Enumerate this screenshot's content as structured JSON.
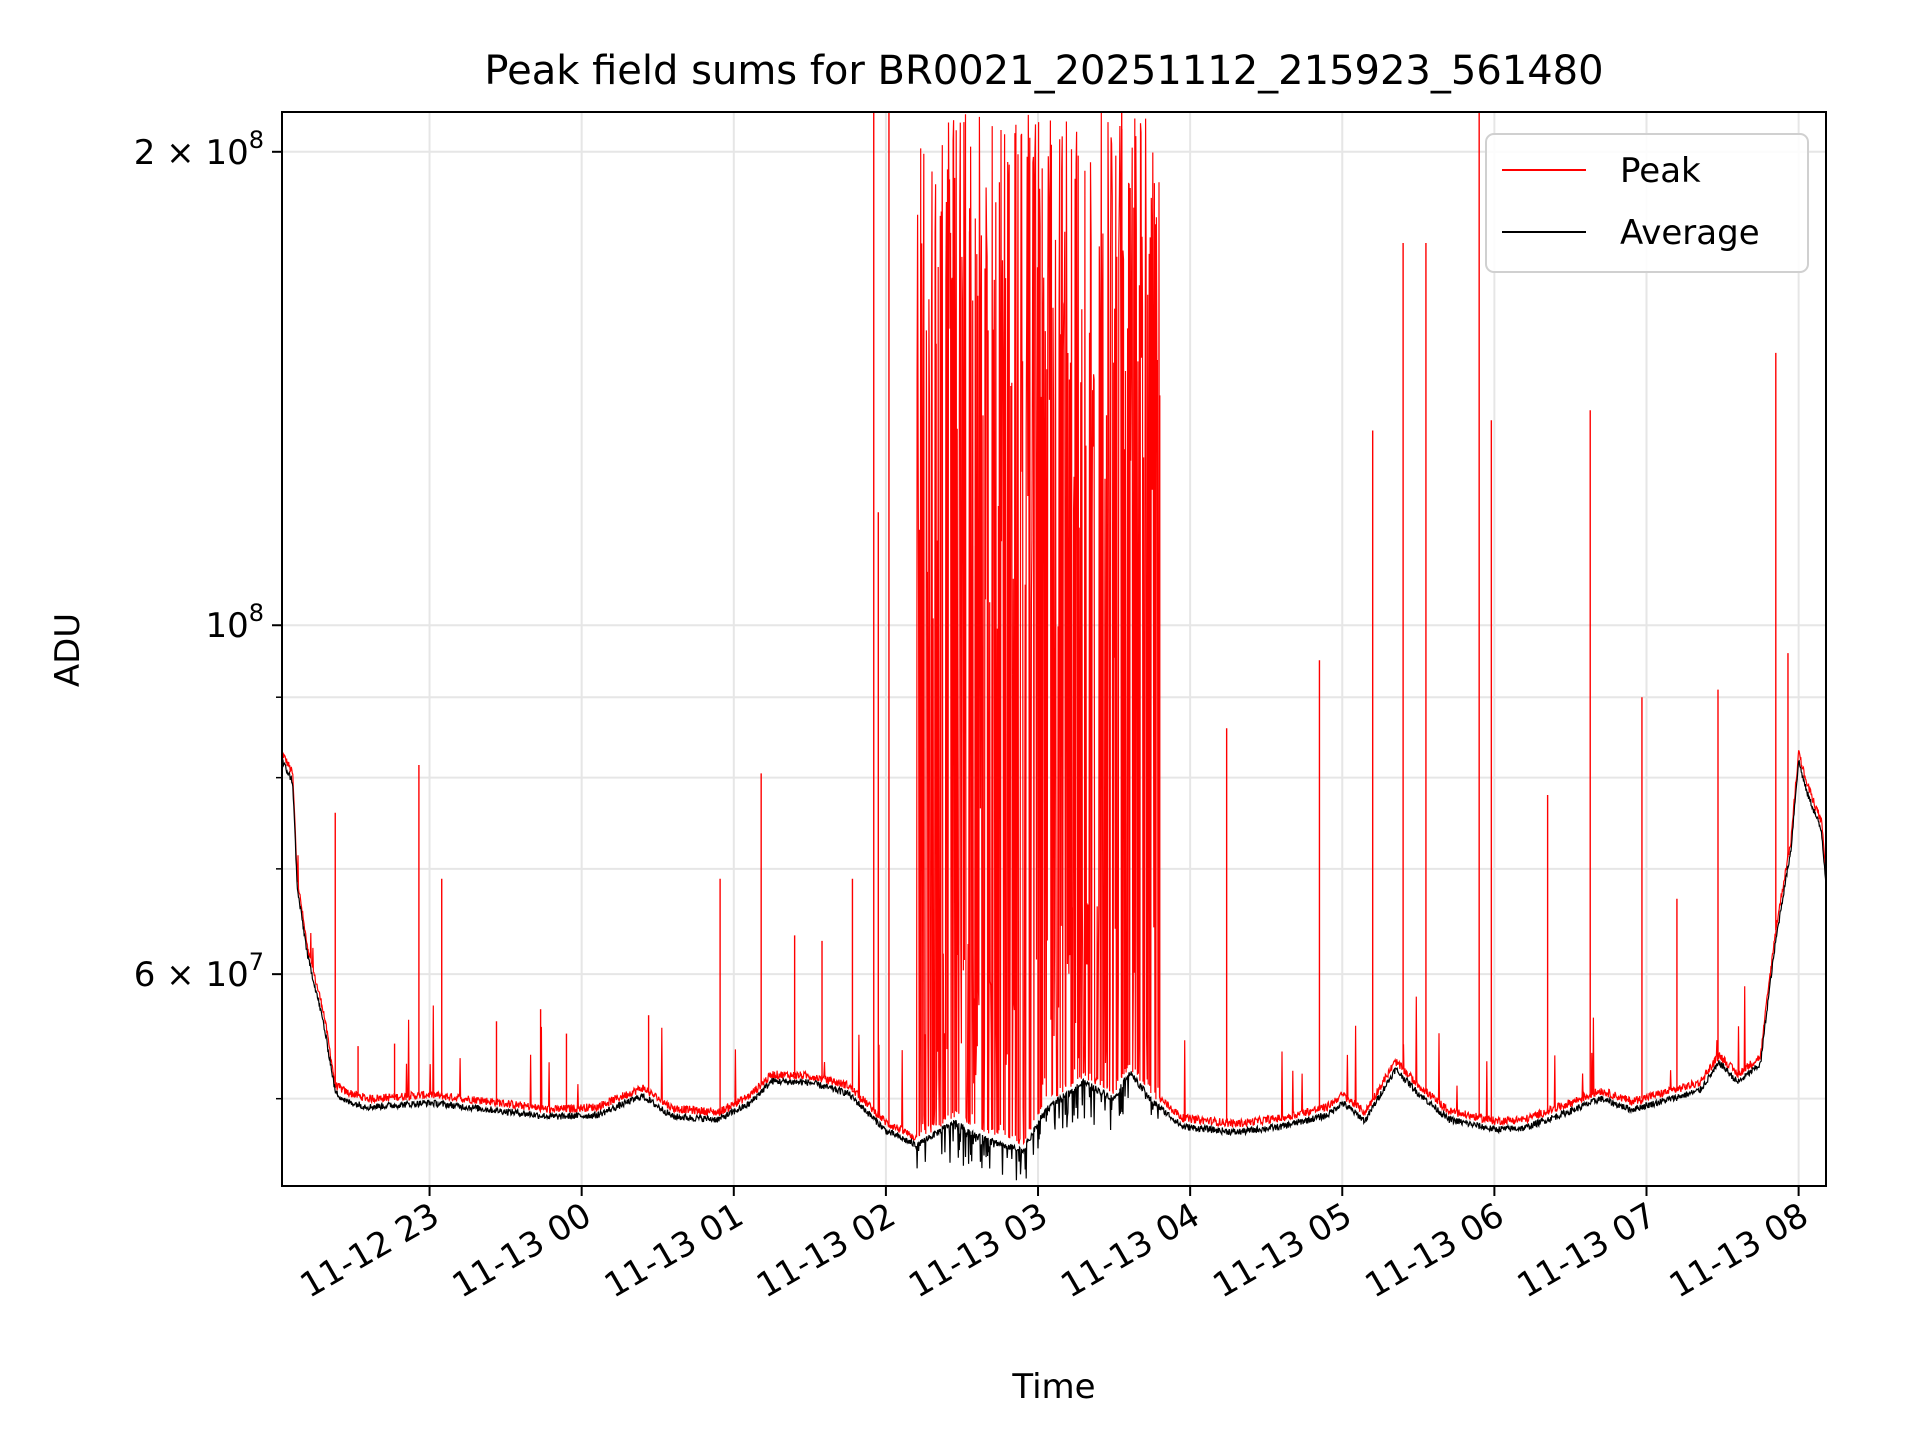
{
  "chart_data": {
    "type": "line",
    "title": "Peak field sums for BR0021_20251112_215923_561480",
    "xlabel": "Time",
    "ylabel": "ADU",
    "yscale": "log",
    "xlim_hours": [
      22.03,
      32.18
    ],
    "ylim": [
      44000000,
      212000000
    ],
    "grid": true,
    "legend_position": "upper right",
    "x_ticks": [
      {
        "hour": 23,
        "label": "11-12 23"
      },
      {
        "hour": 24,
        "label": "11-13 00"
      },
      {
        "hour": 25,
        "label": "11-13 01"
      },
      {
        "hour": 26,
        "label": "11-13 02"
      },
      {
        "hour": 27,
        "label": "11-13 03"
      },
      {
        "hour": 28,
        "label": "11-13 04"
      },
      {
        "hour": 29,
        "label": "11-13 05"
      },
      {
        "hour": 30,
        "label": "11-13 06"
      },
      {
        "hour": 31,
        "label": "11-13 07"
      },
      {
        "hour": 32,
        "label": "11-13 08"
      }
    ],
    "y_major_ticks": [
      {
        "value": 60000000,
        "mantissa": "6",
        "exponent": "7"
      },
      {
        "value": 100000000,
        "mantissa": "",
        "exponent": "8"
      },
      {
        "value": 200000000,
        "mantissa": "2",
        "exponent": "8"
      }
    ],
    "y_minor_ticks": [
      50000000,
      70000000,
      80000000,
      90000000
    ],
    "times_symbol": "×",
    "base": "10",
    "series": [
      {
        "name": "Peak",
        "color": "#ff0000",
        "baseline_points": [
          [
            22.03,
            83000000
          ],
          [
            22.1,
            80500000
          ],
          [
            22.13,
            69000000
          ],
          [
            22.2,
            62000000
          ],
          [
            22.3,
            57000000
          ],
          [
            22.38,
            51000000
          ],
          [
            22.45,
            50500000
          ],
          [
            22.6,
            50000000
          ],
          [
            23.0,
            50300000
          ],
          [
            23.4,
            49800000
          ],
          [
            23.8,
            49200000
          ],
          [
            24.1,
            49400000
          ],
          [
            24.4,
            50800000
          ],
          [
            24.6,
            49300000
          ],
          [
            24.9,
            49000000
          ],
          [
            25.1,
            50200000
          ],
          [
            25.25,
            51800000
          ],
          [
            25.5,
            51700000
          ],
          [
            25.75,
            51000000
          ],
          [
            26.0,
            48300000
          ],
          [
            26.2,
            47200000
          ],
          [
            26.45,
            48900000
          ],
          [
            26.6,
            48000000
          ],
          [
            26.9,
            47000000
          ],
          [
            27.05,
            49800000
          ],
          [
            27.3,
            51800000
          ],
          [
            27.5,
            50600000
          ],
          [
            27.6,
            52500000
          ],
          [
            27.75,
            50500000
          ],
          [
            27.95,
            48600000
          ],
          [
            28.3,
            48200000
          ],
          [
            28.6,
            48600000
          ],
          [
            28.9,
            49400000
          ],
          [
            29.0,
            50300000
          ],
          [
            29.15,
            49000000
          ],
          [
            29.35,
            52800000
          ],
          [
            29.5,
            51000000
          ],
          [
            29.7,
            49100000
          ],
          [
            30.0,
            48400000
          ],
          [
            30.2,
            48500000
          ],
          [
            30.5,
            49700000
          ],
          [
            30.7,
            50600000
          ],
          [
            30.9,
            49800000
          ],
          [
            31.2,
            50700000
          ],
          [
            31.35,
            51200000
          ],
          [
            31.48,
            53300000
          ],
          [
            31.6,
            51800000
          ],
          [
            31.75,
            53200000
          ],
          [
            31.85,
            64000000
          ],
          [
            31.95,
            73000000
          ],
          [
            32.0,
            83000000
          ],
          [
            32.05,
            79500000
          ],
          [
            32.15,
            75000000
          ],
          [
            32.18,
            69500000
          ]
        ],
        "spikes": [
          [
            22.38,
            76000000
          ],
          [
            22.53,
            54000000
          ],
          [
            22.77,
            54200000
          ],
          [
            22.93,
            81500000
          ],
          [
            23.08,
            69000000
          ],
          [
            23.44,
            56000000
          ],
          [
            23.73,
            57000000
          ],
          [
            23.9,
            55000000
          ],
          [
            24.44,
            56500000
          ],
          [
            24.91,
            69000000
          ],
          [
            25.18,
            80500000
          ],
          [
            25.4,
            63500000
          ],
          [
            25.58,
            63000000
          ],
          [
            25.78,
            69000000
          ],
          [
            25.92,
            212000000
          ],
          [
            25.95,
            118000000
          ],
          [
            26.02,
            212000000
          ],
          [
            26.22,
            115000000
          ],
          [
            26.33,
            151000000
          ],
          [
            26.55,
            178000000
          ],
          [
            27.0,
            140000000
          ],
          [
            27.55,
            212000000
          ],
          [
            27.8,
            140000000
          ],
          [
            28.24,
            86000000
          ],
          [
            28.85,
            95000000
          ],
          [
            29.2,
            133000000
          ],
          [
            29.4,
            175000000
          ],
          [
            29.55,
            175000000
          ],
          [
            29.9,
            212000000
          ],
          [
            29.98,
            135000000
          ],
          [
            30.35,
            78000000
          ],
          [
            30.63,
            137000000
          ],
          [
            30.97,
            90000000
          ],
          [
            31.2,
            67000000
          ],
          [
            31.47,
            91000000
          ],
          [
            31.85,
            149000000
          ],
          [
            31.93,
            96000000
          ]
        ],
        "dense_band_hours": [
          26.2,
          27.8
        ],
        "dense_band_top": 212000000
      },
      {
        "name": "Average",
        "color": "#000000",
        "baseline_points": [
          [
            22.03,
            82000000
          ],
          [
            22.1,
            79500000
          ],
          [
            22.13,
            68000000
          ],
          [
            22.2,
            61500000
          ],
          [
            22.3,
            56000000
          ],
          [
            22.38,
            50500000
          ],
          [
            22.45,
            49800000
          ],
          [
            22.6,
            49400000
          ],
          [
            23.0,
            49700000
          ],
          [
            23.4,
            49200000
          ],
          [
            23.8,
            48700000
          ],
          [
            24.1,
            48800000
          ],
          [
            24.4,
            50200000
          ],
          [
            24.6,
            48700000
          ],
          [
            24.9,
            48500000
          ],
          [
            25.1,
            49600000
          ],
          [
            25.25,
            51300000
          ],
          [
            25.5,
            51200000
          ],
          [
            25.75,
            50400000
          ],
          [
            26.0,
            47700000
          ],
          [
            26.2,
            46700000
          ],
          [
            26.45,
            48300000
          ],
          [
            26.6,
            47300000
          ],
          [
            26.9,
            46300000
          ],
          [
            27.05,
            49200000
          ],
          [
            27.3,
            51200000
          ],
          [
            27.5,
            50000000
          ],
          [
            27.6,
            52000000
          ],
          [
            27.75,
            49800000
          ],
          [
            27.95,
            48000000
          ],
          [
            28.3,
            47600000
          ],
          [
            28.6,
            48000000
          ],
          [
            28.9,
            48800000
          ],
          [
            29.0,
            49700000
          ],
          [
            29.15,
            48400000
          ],
          [
            29.35,
            52200000
          ],
          [
            29.5,
            50400000
          ],
          [
            29.7,
            48500000
          ],
          [
            30.0,
            47800000
          ],
          [
            30.2,
            47900000
          ],
          [
            30.5,
            49100000
          ],
          [
            30.7,
            50000000
          ],
          [
            30.9,
            49200000
          ],
          [
            31.2,
            50100000
          ],
          [
            31.35,
            50600000
          ],
          [
            31.48,
            52700000
          ],
          [
            31.6,
            51200000
          ],
          [
            31.75,
            52600000
          ],
          [
            31.85,
            63000000
          ],
          [
            31.95,
            72000000
          ],
          [
            32.0,
            82000000
          ],
          [
            32.05,
            78500000
          ],
          [
            32.15,
            74000000
          ],
          [
            32.18,
            68500000
          ]
        ]
      }
    ]
  }
}
